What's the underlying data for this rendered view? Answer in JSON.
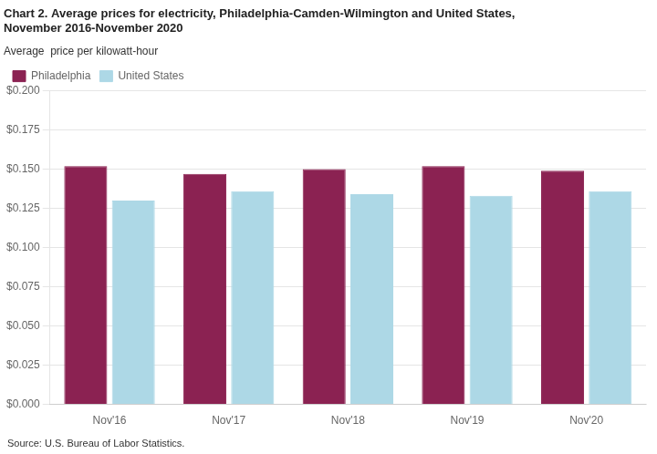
{
  "chart_data": {
    "type": "bar",
    "title": [
      "Chart 2. Average prices for electricity, Philadelphia-Camden-Wilmington and United States,",
      "November 2016-November 2020"
    ],
    "ylabel": "Average  price per kilowatt-hour",
    "footer": "Source: U.S. Bureau of Labor Statistics.",
    "categories": [
      "Nov'16",
      "Nov'17",
      "Nov'18",
      "Nov'19",
      "Nov'20"
    ],
    "series": [
      {
        "name": "Philadelphia",
        "color": "#8B2252",
        "values": [
          0.152,
          0.147,
          0.15,
          0.152,
          0.149
        ]
      },
      {
        "name": "United States",
        "color": "#ADD8E6",
        "values": [
          0.13,
          0.136,
          0.134,
          0.133,
          0.136
        ]
      }
    ],
    "ylim": [
      0.0,
      0.2
    ],
    "yticks": [
      {
        "value": 0.0,
        "label": "$0.000"
      },
      {
        "value": 0.025,
        "label": "$0.025"
      },
      {
        "value": 0.05,
        "label": "$0.050"
      },
      {
        "value": 0.075,
        "label": "$0.075"
      },
      {
        "value": 0.1,
        "label": "$0.100"
      },
      {
        "value": 0.125,
        "label": "$0.125"
      },
      {
        "value": 0.15,
        "label": "$0.150"
      },
      {
        "value": 0.175,
        "label": "$0.175"
      },
      {
        "value": 0.2,
        "label": "$0.200"
      }
    ],
    "grid": true,
    "legend": "upper left"
  }
}
